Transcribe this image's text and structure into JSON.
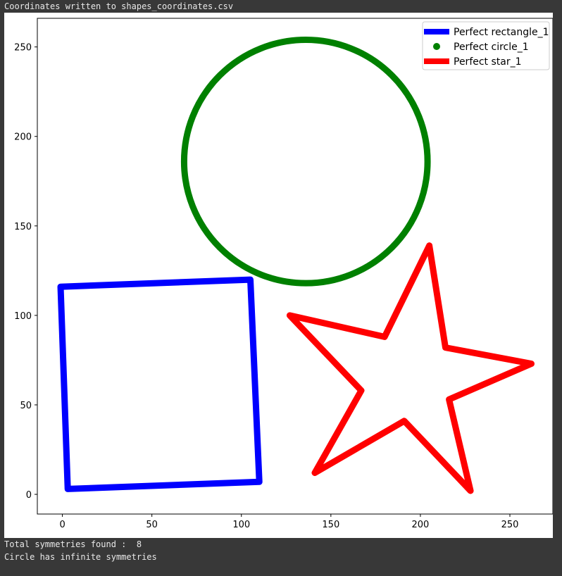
{
  "console": {
    "top": "Coordinates written to shapes_coordinates.csv",
    "bottom_line1": "Total symmetries found :  8",
    "bottom_line2": "Circle has infinite symmetries"
  },
  "chart_data": {
    "type": "line",
    "title": "",
    "xlabel": "",
    "ylabel": "",
    "xlim": [
      -14,
      274
    ],
    "ylim": [
      -11,
      266
    ],
    "grid": false,
    "legend_position": "top-right",
    "xticks": [
      0,
      50,
      100,
      150,
      200,
      250
    ],
    "yticks": [
      0,
      50,
      100,
      150,
      200,
      250
    ],
    "series": [
      {
        "name": "Perfect rectangle_1",
        "color": "#0000ff",
        "marker": "line",
        "points": [
          [
            -1,
            116
          ],
          [
            105,
            120
          ],
          [
            110,
            7
          ],
          [
            3,
            3
          ],
          [
            -1,
            116
          ]
        ]
      },
      {
        "name": "Perfect circle_1",
        "color": "#008000",
        "marker": "circle",
        "center": [
          136,
          186
        ],
        "radius": 68
      },
      {
        "name": "Perfect star_1",
        "color": "#ff0000",
        "marker": "line",
        "points": [
          [
            205,
            139
          ],
          [
            214,
            82
          ],
          [
            262,
            73
          ],
          [
            216,
            53
          ],
          [
            228,
            2
          ],
          [
            191,
            41
          ],
          [
            141,
            12
          ],
          [
            167,
            58
          ],
          [
            127,
            100
          ],
          [
            180,
            88
          ],
          [
            205,
            139
          ]
        ]
      }
    ]
  }
}
